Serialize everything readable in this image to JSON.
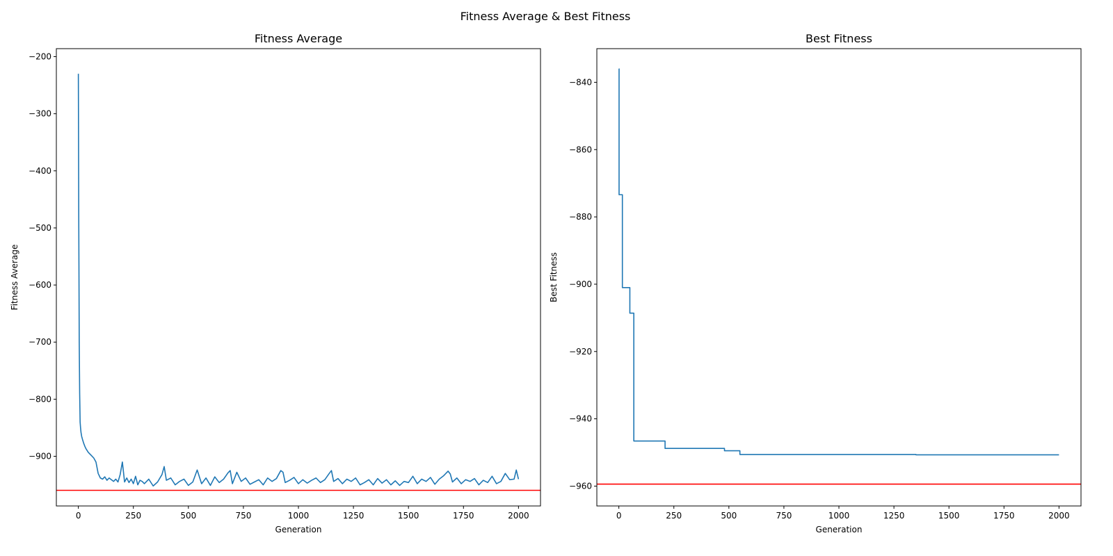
{
  "figure": {
    "suptitle": "Fitness Average & Best Fitness"
  },
  "colors": {
    "series": "#1f77b4",
    "reference_line": "#ff0000",
    "axes": "#000000"
  },
  "chart_data": [
    {
      "type": "line",
      "title": "Fitness Average",
      "xlabel": "Generation",
      "ylabel": "Fitness Average",
      "xlim": [
        -100,
        2100
      ],
      "ylim": [
        -987,
        -186
      ],
      "xticks": [
        0,
        250,
        500,
        750,
        1000,
        1250,
        1500,
        1750,
        2000
      ],
      "yticks": [
        -900,
        -800,
        -700,
        -600,
        -500,
        -400,
        -300,
        -200
      ],
      "grid": false,
      "reference_line": {
        "orientation": "horizontal",
        "y": -959.6,
        "color": "#ff0000"
      },
      "series": [
        {
          "color": "#1f77b4",
          "x": [
            0,
            2,
            4,
            6,
            8,
            10,
            12,
            15,
            20,
            25,
            30,
            35,
            40,
            45,
            50,
            60,
            70,
            80,
            90,
            100,
            110,
            120,
            130,
            140,
            150,
            160,
            170,
            180,
            190,
            200,
            210,
            220,
            230,
            240,
            250,
            260,
            270,
            280,
            290,
            300,
            320,
            340,
            360,
            380,
            390,
            400,
            420,
            440,
            460,
            480,
            500,
            520,
            540,
            560,
            580,
            600,
            620,
            640,
            660,
            680,
            690,
            700,
            720,
            740,
            760,
            780,
            800,
            820,
            840,
            860,
            880,
            900,
            920,
            930,
            940,
            960,
            980,
            1000,
            1020,
            1040,
            1060,
            1080,
            1100,
            1120,
            1140,
            1150,
            1160,
            1180,
            1200,
            1220,
            1240,
            1260,
            1280,
            1300,
            1320,
            1340,
            1360,
            1380,
            1400,
            1420,
            1440,
            1460,
            1480,
            1500,
            1520,
            1540,
            1560,
            1580,
            1600,
            1620,
            1640,
            1660,
            1680,
            1690,
            1700,
            1720,
            1740,
            1760,
            1780,
            1800,
            1820,
            1840,
            1860,
            1880,
            1900,
            1920,
            1940,
            1960,
            1980,
            1990,
            2000
          ],
          "values": [
            -230,
            -500,
            -700,
            -790,
            -840,
            -850,
            -858,
            -865,
            -872,
            -878,
            -883,
            -887,
            -890,
            -893,
            -895,
            -899,
            -903,
            -910,
            -930,
            -938,
            -940,
            -936,
            -942,
            -938,
            -941,
            -944,
            -940,
            -945,
            -932,
            -910,
            -945,
            -938,
            -946,
            -940,
            -948,
            -935,
            -950,
            -942,
            -944,
            -948,
            -940,
            -952,
            -945,
            -932,
            -918,
            -942,
            -938,
            -950,
            -944,
            -940,
            -951,
            -945,
            -924,
            -948,
            -938,
            -951,
            -936,
            -946,
            -940,
            -929,
            -925,
            -948,
            -928,
            -944,
            -938,
            -949,
            -945,
            -941,
            -950,
            -938,
            -944,
            -939,
            -925,
            -928,
            -946,
            -942,
            -937,
            -948,
            -941,
            -947,
            -942,
            -938,
            -946,
            -941,
            -930,
            -925,
            -944,
            -939,
            -948,
            -940,
            -944,
            -938,
            -950,
            -946,
            -941,
            -950,
            -939,
            -947,
            -941,
            -950,
            -943,
            -951,
            -944,
            -946,
            -935,
            -948,
            -940,
            -944,
            -937,
            -949,
            -940,
            -934,
            -926,
            -931,
            -945,
            -938,
            -948,
            -941,
            -944,
            -939,
            -950,
            -942,
            -946,
            -935,
            -948,
            -944,
            -930,
            -941,
            -940,
            -924,
            -940
          ]
        }
      ]
    },
    {
      "type": "line",
      "title": "Best Fitness",
      "xlabel": "Generation",
      "ylabel": "Best Fitness",
      "xlim": [
        -100,
        2100
      ],
      "ylim": [
        -965.9,
        -830.0
      ],
      "xticks": [
        0,
        250,
        500,
        750,
        1000,
        1250,
        1500,
        1750,
        2000
      ],
      "yticks": [
        -960,
        -940,
        -920,
        -900,
        -880,
        -860,
        -840
      ],
      "grid": false,
      "reference_line": {
        "orientation": "horizontal",
        "y": -959.4,
        "color": "#ff0000"
      },
      "series": [
        {
          "color": "#1f77b4",
          "x": [
            0,
            1,
            1,
            16,
            16,
            50,
            50,
            68,
            68,
            210,
            210,
            480,
            480,
            550,
            550,
            1350,
            1350,
            1400,
            2000
          ],
          "values": [
            -836,
            -836,
            -873.4,
            -873.4,
            -901.0,
            -901.0,
            -908.6,
            -908.6,
            -946.6,
            -946.6,
            -948.8,
            -948.8,
            -949.5,
            -949.5,
            -950.6,
            -950.6,
            -950.7,
            -950.7,
            -950.7
          ]
        }
      ]
    }
  ]
}
